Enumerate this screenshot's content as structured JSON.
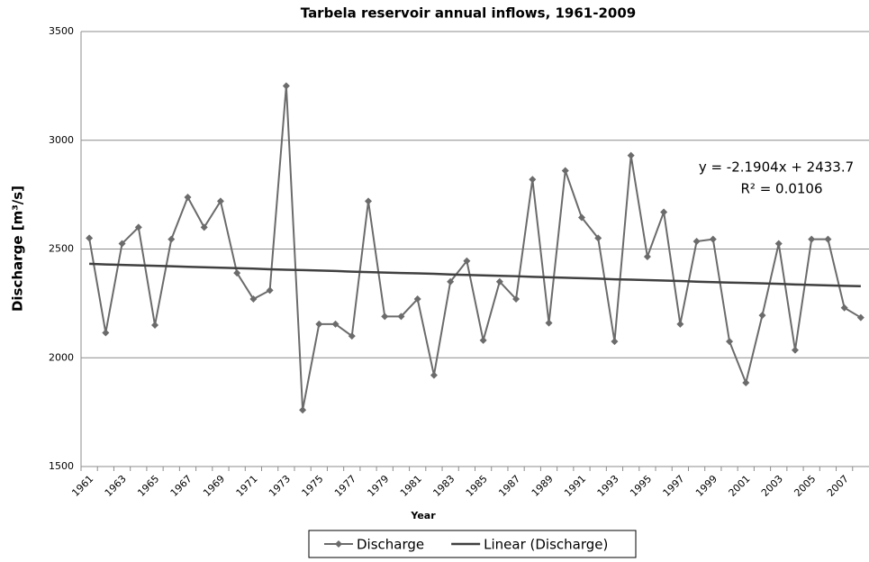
{
  "chart_data": {
    "type": "line",
    "title": "Tarbela reservoir annual inflows, 1961-2009",
    "x_label": "Year",
    "y_label": "Discharge [m³/s]",
    "categories": [
      "1961",
      null,
      "1963",
      null,
      "1965",
      null,
      "1967",
      null,
      "1969",
      null,
      "1971",
      null,
      "1973",
      null,
      "1975",
      null,
      "1977",
      null,
      "1979",
      null,
      "1981",
      null,
      "1983",
      null,
      "1985",
      null,
      "1987",
      null,
      "1989",
      null,
      "1991",
      null,
      "1993",
      null,
      "1995",
      null,
      "1997",
      null,
      "1999",
      null,
      "2001",
      null,
      "2003",
      null,
      "2005",
      null,
      "2007",
      null
    ],
    "series": [
      {
        "name": "Discharge",
        "color": "#6b6b6b",
        "marker": "diamond",
        "values": [
          2550,
          2115,
          2525,
          2600,
          2150,
          2545,
          2738,
          2600,
          2720,
          2390,
          2270,
          2310,
          3250,
          1760,
          2155,
          2155,
          2100,
          2720,
          2190,
          2190,
          2270,
          1920,
          2350,
          2445,
          2080,
          2350,
          2270,
          2820,
          2160,
          2860,
          2645,
          2550,
          2075,
          2930,
          2465,
          2670,
          2155,
          2535,
          2545,
          2075,
          1885,
          2195,
          2525,
          2035,
          2545,
          2545,
          2230,
          2185
        ]
      },
      {
        "name": "Linear (Discharge)",
        "color": "#404040",
        "marker": null,
        "values": [
          2432,
          2429,
          2427,
          2425,
          2423,
          2421,
          2418,
          2416,
          2414,
          2412,
          2410,
          2407,
          2405,
          2403,
          2401,
          2399,
          2396,
          2394,
          2392,
          2390,
          2388,
          2386,
          2383,
          2381,
          2379,
          2377,
          2375,
          2372,
          2370,
          2368,
          2366,
          2364,
          2361,
          2359,
          2357,
          2355,
          2353,
          2350,
          2348,
          2346,
          2344,
          2342,
          2340,
          2337,
          2335,
          2333,
          2331,
          2329
        ]
      }
    ],
    "annotations": [
      "y = -2.1904x + 2433.7",
      "R² = 0.0106"
    ],
    "ylim": [
      1500,
      3500
    ],
    "yticks": [
      1500,
      2000,
      2500,
      3000,
      3500
    ],
    "grid": true,
    "legend": "bottom"
  }
}
